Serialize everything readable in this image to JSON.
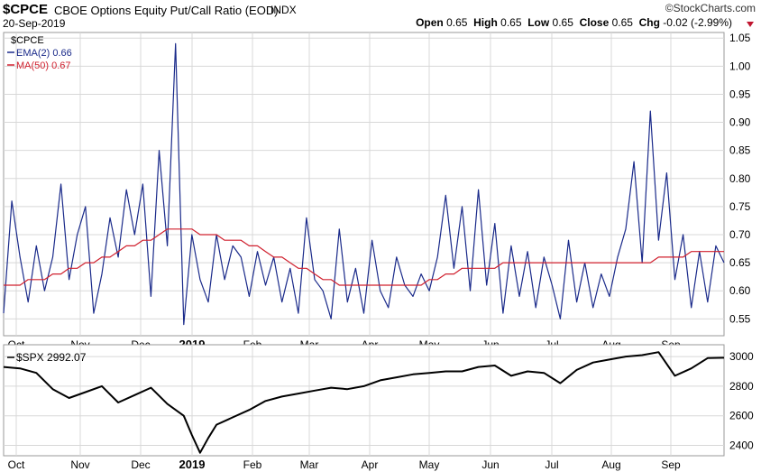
{
  "header": {
    "symbol": "$CPCE",
    "description": "CBOE Options Equity Put/Call Ratio (EOD)",
    "exchange": "INDX",
    "date": "20-Sep-2019",
    "brand": "©StockCharts.com",
    "open_label": "Open",
    "open": "0.65",
    "high_label": "High",
    "high": "0.65",
    "low_label": "Low",
    "low": "0.65",
    "close_label": "Close",
    "close": "0.65",
    "chg_label": "Chg",
    "chg": "-0.02 (-2.99%)"
  },
  "colors": {
    "cpce": "#1a2a8a",
    "ma50": "#d0202e",
    "spx": "#000000",
    "grid": "#d8d8d8",
    "chg_down": "#c0152f"
  },
  "chart_data": [
    {
      "type": "line",
      "legend": [
        "$CPCE",
        "EMA(2) 0.66",
        "MA(50) 0.67"
      ],
      "ylim": [
        0.52,
        1.06
      ],
      "yticks": [
        "0.55",
        "0.60",
        "0.65",
        "0.70",
        "0.75",
        "0.80",
        "0.85",
        "0.90",
        "0.95",
        "1.00",
        "1.05"
      ],
      "xticks": [
        "Oct",
        "Nov",
        "Dec",
        "2019",
        "Feb",
        "Mar",
        "Apr",
        "May",
        "Jun",
        "Jul",
        "Aug",
        "Sep"
      ],
      "grid": true,
      "x": [
        0,
        3,
        6,
        9,
        12,
        15,
        18,
        21,
        24,
        27,
        30,
        33,
        36,
        39,
        42,
        45,
        48,
        51,
        54,
        57,
        60,
        63,
        66,
        69,
        72,
        75,
        78,
        81,
        84,
        87,
        90,
        93,
        96,
        99,
        102,
        105,
        108,
        111,
        114,
        117,
        120,
        123,
        126,
        129,
        132,
        135,
        138,
        141,
        144,
        147,
        150,
        153,
        156,
        159,
        162,
        165,
        168,
        171,
        174,
        177,
        180,
        183,
        186,
        189,
        192,
        195,
        198,
        201,
        204,
        207,
        210,
        213,
        216,
        219,
        222,
        225,
        228,
        231,
        234,
        237,
        240,
        243,
        246,
        249,
        252,
        255,
        258,
        261,
        264
      ],
      "series": [
        {
          "name": "EMA(2) 0.66",
          "values": [
            0.56,
            0.76,
            0.66,
            0.58,
            0.68,
            0.6,
            0.66,
            0.79,
            0.62,
            0.7,
            0.75,
            0.56,
            0.63,
            0.73,
            0.66,
            0.78,
            0.7,
            0.79,
            0.59,
            0.85,
            0.68,
            1.04,
            0.54,
            0.7,
            0.62,
            0.58,
            0.7,
            0.62,
            0.68,
            0.66,
            0.59,
            0.67,
            0.61,
            0.66,
            0.58,
            0.64,
            0.56,
            0.73,
            0.62,
            0.6,
            0.55,
            0.71,
            0.58,
            0.64,
            0.56,
            0.69,
            0.6,
            0.57,
            0.66,
            0.61,
            0.59,
            0.63,
            0.6,
            0.66,
            0.77,
            0.64,
            0.75,
            0.6,
            0.78,
            0.61,
            0.72,
            0.56,
            0.68,
            0.59,
            0.67,
            0.57,
            0.66,
            0.61,
            0.55,
            0.69,
            0.58,
            0.65,
            0.57,
            0.63,
            0.59,
            0.66,
            0.71,
            0.83,
            0.65,
            0.92,
            0.69,
            0.81,
            0.62,
            0.7,
            0.57,
            0.67,
            0.58,
            0.68,
            0.65
          ],
          "color": "#1a2a8a"
        },
        {
          "name": "MA(50) 0.67",
          "values": [
            0.61,
            0.61,
            0.61,
            0.62,
            0.62,
            0.62,
            0.63,
            0.63,
            0.64,
            0.64,
            0.65,
            0.65,
            0.66,
            0.66,
            0.67,
            0.68,
            0.68,
            0.69,
            0.69,
            0.7,
            0.71,
            0.71,
            0.71,
            0.71,
            0.7,
            0.7,
            0.7,
            0.69,
            0.69,
            0.69,
            0.68,
            0.68,
            0.67,
            0.66,
            0.66,
            0.65,
            0.64,
            0.64,
            0.63,
            0.62,
            0.62,
            0.61,
            0.61,
            0.61,
            0.61,
            0.61,
            0.61,
            0.61,
            0.61,
            0.61,
            0.61,
            0.61,
            0.62,
            0.62,
            0.63,
            0.63,
            0.64,
            0.64,
            0.64,
            0.64,
            0.64,
            0.65,
            0.65,
            0.65,
            0.65,
            0.65,
            0.65,
            0.65,
            0.65,
            0.65,
            0.65,
            0.65,
            0.65,
            0.65,
            0.65,
            0.65,
            0.65,
            0.65,
            0.65,
            0.65,
            0.66,
            0.66,
            0.66,
            0.66,
            0.67,
            0.67,
            0.67,
            0.67,
            0.67
          ],
          "color": "#d0202e"
        }
      ]
    },
    {
      "type": "line",
      "legend": [
        "$SPX 2992.07"
      ],
      "ylim": [
        2330,
        3080
      ],
      "yticks": [
        "2400",
        "2600",
        "2800",
        "3000"
      ],
      "xticks": [
        "Oct",
        "Nov",
        "Dec",
        "2019",
        "Feb",
        "Mar",
        "Apr",
        "May",
        "Jun",
        "Jul",
        "Aug",
        "Sep"
      ],
      "grid": true,
      "x": [
        0,
        6,
        12,
        18,
        24,
        30,
        36,
        42,
        48,
        54,
        60,
        66,
        69,
        72,
        75,
        78,
        84,
        90,
        96,
        102,
        108,
        114,
        120,
        126,
        132,
        138,
        144,
        150,
        156,
        162,
        168,
        174,
        180,
        186,
        192,
        198,
        204,
        210,
        216,
        222,
        228,
        234,
        240,
        246,
        252,
        258,
        264
      ],
      "series": [
        {
          "name": "$SPX 2992.07",
          "values": [
            2930,
            2920,
            2890,
            2780,
            2720,
            2760,
            2800,
            2690,
            2740,
            2790,
            2680,
            2600,
            2470,
            2350,
            2450,
            2540,
            2590,
            2640,
            2700,
            2730,
            2750,
            2770,
            2790,
            2780,
            2800,
            2840,
            2860,
            2880,
            2890,
            2900,
            2900,
            2930,
            2940,
            2870,
            2900,
            2890,
            2820,
            2910,
            2960,
            2980,
            3000,
            3010,
            3030,
            2870,
            2920,
            2990,
            2992
          ],
          "color": "#000000"
        }
      ]
    }
  ]
}
